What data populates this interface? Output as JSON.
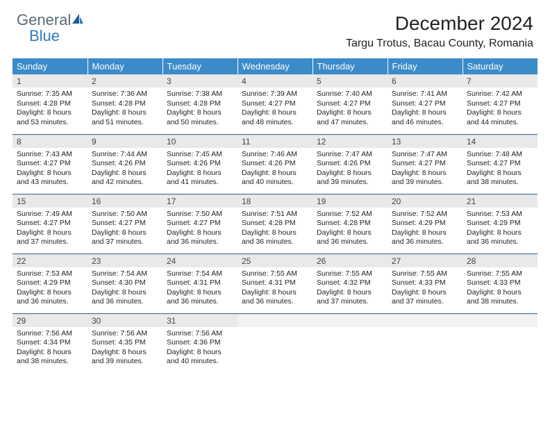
{
  "brand": {
    "general": "General",
    "blue": "Blue"
  },
  "title": "December 2024",
  "location": "Targu Trotus, Bacau County, Romania",
  "colors": {
    "header_bg": "#3b8bc9",
    "header_text": "#ffffff",
    "daynum_bg": "#e9e9e9",
    "row_divider": "#3b6f9e",
    "logo_general": "#5a6b78",
    "logo_blue": "#2f7bbf",
    "page_bg": "#ffffff"
  },
  "typography": {
    "title_fontsize": 28,
    "location_fontsize": 16,
    "weekday_fontsize": 13,
    "daynum_fontsize": 12,
    "body_fontsize": 10.5
  },
  "weekdays": [
    "Sunday",
    "Monday",
    "Tuesday",
    "Wednesday",
    "Thursday",
    "Friday",
    "Saturday"
  ],
  "days": [
    {
      "n": 1,
      "sunrise": "7:35 AM",
      "sunset": "4:28 PM",
      "daylight": "8 hours and 53 minutes."
    },
    {
      "n": 2,
      "sunrise": "7:36 AM",
      "sunset": "4:28 PM",
      "daylight": "8 hours and 51 minutes."
    },
    {
      "n": 3,
      "sunrise": "7:38 AM",
      "sunset": "4:28 PM",
      "daylight": "8 hours and 50 minutes."
    },
    {
      "n": 4,
      "sunrise": "7:39 AM",
      "sunset": "4:27 PM",
      "daylight": "8 hours and 48 minutes."
    },
    {
      "n": 5,
      "sunrise": "7:40 AM",
      "sunset": "4:27 PM",
      "daylight": "8 hours and 47 minutes."
    },
    {
      "n": 6,
      "sunrise": "7:41 AM",
      "sunset": "4:27 PM",
      "daylight": "8 hours and 46 minutes."
    },
    {
      "n": 7,
      "sunrise": "7:42 AM",
      "sunset": "4:27 PM",
      "daylight": "8 hours and 44 minutes."
    },
    {
      "n": 8,
      "sunrise": "7:43 AM",
      "sunset": "4:27 PM",
      "daylight": "8 hours and 43 minutes."
    },
    {
      "n": 9,
      "sunrise": "7:44 AM",
      "sunset": "4:26 PM",
      "daylight": "8 hours and 42 minutes."
    },
    {
      "n": 10,
      "sunrise": "7:45 AM",
      "sunset": "4:26 PM",
      "daylight": "8 hours and 41 minutes."
    },
    {
      "n": 11,
      "sunrise": "7:46 AM",
      "sunset": "4:26 PM",
      "daylight": "8 hours and 40 minutes."
    },
    {
      "n": 12,
      "sunrise": "7:47 AM",
      "sunset": "4:26 PM",
      "daylight": "8 hours and 39 minutes."
    },
    {
      "n": 13,
      "sunrise": "7:47 AM",
      "sunset": "4:27 PM",
      "daylight": "8 hours and 39 minutes."
    },
    {
      "n": 14,
      "sunrise": "7:48 AM",
      "sunset": "4:27 PM",
      "daylight": "8 hours and 38 minutes."
    },
    {
      "n": 15,
      "sunrise": "7:49 AM",
      "sunset": "4:27 PM",
      "daylight": "8 hours and 37 minutes."
    },
    {
      "n": 16,
      "sunrise": "7:50 AM",
      "sunset": "4:27 PM",
      "daylight": "8 hours and 37 minutes."
    },
    {
      "n": 17,
      "sunrise": "7:50 AM",
      "sunset": "4:27 PM",
      "daylight": "8 hours and 36 minutes."
    },
    {
      "n": 18,
      "sunrise": "7:51 AM",
      "sunset": "4:28 PM",
      "daylight": "8 hours and 36 minutes."
    },
    {
      "n": 19,
      "sunrise": "7:52 AM",
      "sunset": "4:28 PM",
      "daylight": "8 hours and 36 minutes."
    },
    {
      "n": 20,
      "sunrise": "7:52 AM",
      "sunset": "4:29 PM",
      "daylight": "8 hours and 36 minutes."
    },
    {
      "n": 21,
      "sunrise": "7:53 AM",
      "sunset": "4:29 PM",
      "daylight": "8 hours and 36 minutes."
    },
    {
      "n": 22,
      "sunrise": "7:53 AM",
      "sunset": "4:29 PM",
      "daylight": "8 hours and 36 minutes."
    },
    {
      "n": 23,
      "sunrise": "7:54 AM",
      "sunset": "4:30 PM",
      "daylight": "8 hours and 36 minutes."
    },
    {
      "n": 24,
      "sunrise": "7:54 AM",
      "sunset": "4:31 PM",
      "daylight": "8 hours and 36 minutes."
    },
    {
      "n": 25,
      "sunrise": "7:55 AM",
      "sunset": "4:31 PM",
      "daylight": "8 hours and 36 minutes."
    },
    {
      "n": 26,
      "sunrise": "7:55 AM",
      "sunset": "4:32 PM",
      "daylight": "8 hours and 37 minutes."
    },
    {
      "n": 27,
      "sunrise": "7:55 AM",
      "sunset": "4:33 PM",
      "daylight": "8 hours and 37 minutes."
    },
    {
      "n": 28,
      "sunrise": "7:55 AM",
      "sunset": "4:33 PM",
      "daylight": "8 hours and 38 minutes."
    },
    {
      "n": 29,
      "sunrise": "7:56 AM",
      "sunset": "4:34 PM",
      "daylight": "8 hours and 38 minutes."
    },
    {
      "n": 30,
      "sunrise": "7:56 AM",
      "sunset": "4:35 PM",
      "daylight": "8 hours and 39 minutes."
    },
    {
      "n": 31,
      "sunrise": "7:56 AM",
      "sunset": "4:36 PM",
      "daylight": "8 hours and 40 minutes."
    }
  ],
  "labels": {
    "sunrise": "Sunrise:",
    "sunset": "Sunset:",
    "daylight": "Daylight:"
  },
  "layout": {
    "columns": 7,
    "rows": 5,
    "start_weekday_index": 0,
    "trailing_empty": 4
  }
}
